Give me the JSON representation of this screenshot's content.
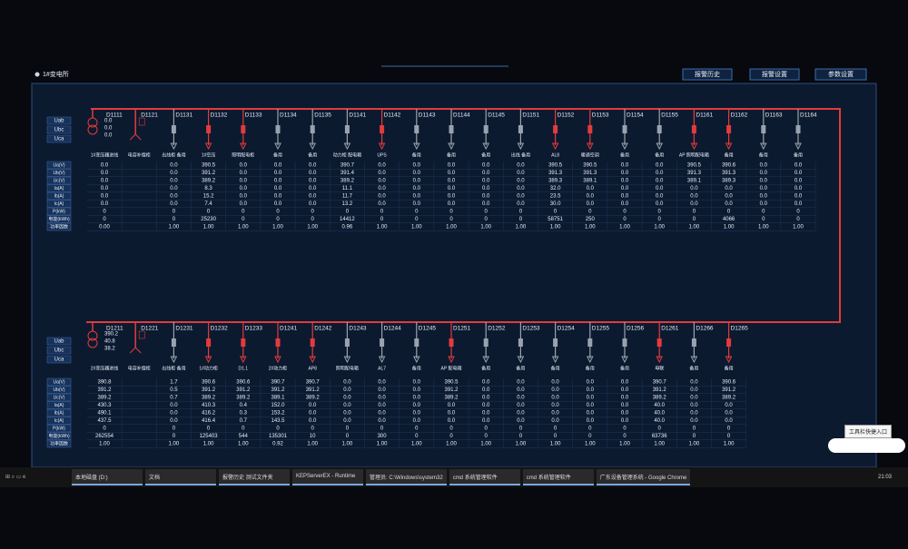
{
  "header": {
    "title": "1#变电所",
    "buttons": [
      "报警历史",
      "报警设置",
      "参数设置"
    ]
  },
  "row_labels": [
    "Ua(V)",
    "Ub(V)",
    "Uc(V)",
    "Ia(A)",
    "Ib(A)",
    "Ic(A)",
    "P(kW)",
    "电能(kWh)",
    "功率因数"
  ],
  "phase_labels": [
    "Uab",
    "Ubc",
    "Uca"
  ],
  "sections": [
    {
      "feeders": [
        {
          "id": "D1111",
          "kind": "transformer",
          "status": "on",
          "label": "1#变压器进线",
          "meter": [
            "0.0",
            "0.0",
            "0.0"
          ],
          "values": [
            "0.0",
            "0.0",
            "0.0",
            "0.0",
            "0.0",
            "0.0",
            "0",
            "0",
            "0.00"
          ]
        },
        {
          "id": "D1121",
          "kind": "capacitor",
          "status": "on",
          "label": "电容补偿柜"
        },
        {
          "id": "D1131",
          "kind": "feeder",
          "status": "off",
          "label": "出线柜 备用",
          "values": [
            "0.0",
            "0.0",
            "0.0",
            "0.0",
            "0.0",
            "0.0",
            "0",
            "0",
            "1.00"
          ]
        },
        {
          "id": "D1132",
          "kind": "feeder",
          "status": "on",
          "label": "1#空压",
          "values": [
            "390.5",
            "391.2",
            "389.2",
            "8.3",
            "15.2",
            "7.4",
            "0",
            "25230",
            "1.00"
          ]
        },
        {
          "id": "D1133",
          "kind": "feeder",
          "status": "on",
          "label": "照明配电柜",
          "values": [
            "0.0",
            "0.0",
            "0.0",
            "0.0",
            "0.0",
            "0.0",
            "0",
            "0",
            "1.00"
          ]
        },
        {
          "id": "D1134",
          "kind": "feeder",
          "status": "off",
          "label": "备用",
          "values": [
            "0.0",
            "0.0",
            "0.0",
            "0.0",
            "0.0",
            "0.0",
            "0",
            "0",
            "1.00"
          ]
        },
        {
          "id": "D1135",
          "kind": "feeder",
          "status": "off",
          "label": "备用",
          "values": [
            "0.0",
            "0.0",
            "0.0",
            "0.0",
            "0.0",
            "0.0",
            "0",
            "0",
            "1.00"
          ]
        },
        {
          "id": "D1141",
          "kind": "feeder",
          "status": "off",
          "label": "动力柜 配电箱",
          "values": [
            "390.7",
            "391.4",
            "389.2",
            "11.1",
            "11.7",
            "13.2",
            "0",
            "14412",
            "0.96"
          ]
        },
        {
          "id": "D1142",
          "kind": "feeder",
          "status": "on",
          "label": "UPS",
          "values": [
            "0.0",
            "0.0",
            "0.0",
            "0.0",
            "0.0",
            "0.0",
            "0",
            "0",
            "1.00"
          ]
        },
        {
          "id": "D1143",
          "kind": "feeder",
          "status": "off",
          "label": "备用",
          "values": [
            "0.0",
            "0.0",
            "0.0",
            "0.0",
            "0.0",
            "0.0",
            "0",
            "0",
            "1.00"
          ]
        },
        {
          "id": "D1144",
          "kind": "feeder",
          "status": "off",
          "label": "备用",
          "values": [
            "0.0",
            "0.0",
            "0.0",
            "0.0",
            "0.0",
            "0.0",
            "0",
            "0",
            "1.00"
          ]
        },
        {
          "id": "D1145",
          "kind": "feeder",
          "status": "off",
          "label": "备用",
          "values": [
            "0.0",
            "0.0",
            "0.0",
            "0.0",
            "0.0",
            "0.0",
            "0",
            "0",
            "1.00"
          ]
        },
        {
          "id": "D1151",
          "kind": "feeder",
          "status": "off",
          "label": "出线 备用",
          "values": [
            "0.0",
            "0.0",
            "0.0",
            "0.0",
            "0.0",
            "0.0",
            "0",
            "0",
            "1.00"
          ]
        },
        {
          "id": "D1152",
          "kind": "feeder",
          "status": "on",
          "label": "AL8",
          "values": [
            "390.5",
            "391.3",
            "389.3",
            "32.0",
            "23.5",
            "30.0",
            "0",
            "58751",
            "1.00"
          ]
        },
        {
          "id": "D1153",
          "kind": "feeder",
          "status": "on",
          "label": "暖通空调",
          "values": [
            "390.5",
            "391.3",
            "389.1",
            "0.0",
            "0.0",
            "0.0",
            "0",
            "250",
            "1.00"
          ]
        },
        {
          "id": "D1154",
          "kind": "feeder",
          "status": "off",
          "label": "备用",
          "values": [
            "0.0",
            "0.0",
            "0.0",
            "0.0",
            "0.0",
            "0.0",
            "0",
            "0",
            "1.00"
          ]
        },
        {
          "id": "D1155",
          "kind": "feeder",
          "status": "off",
          "label": "备用",
          "values": [
            "0.0",
            "0.0",
            "0.0",
            "0.0",
            "0.0",
            "0.0",
            "0",
            "0",
            "1.00"
          ]
        },
        {
          "id": "D1161",
          "kind": "feeder",
          "status": "on",
          "label": "AP 照明配电箱",
          "values": [
            "390.5",
            "391.3",
            "389.1",
            "0.0",
            "0.0",
            "0.0",
            "0",
            "0",
            "1.00"
          ]
        },
        {
          "id": "D1162",
          "kind": "feeder",
          "status": "on",
          "label": "备用",
          "values": [
            "390.6",
            "391.3",
            "389.3",
            "0.0",
            "0.0",
            "0.0",
            "0",
            "4066",
            "1.00"
          ]
        },
        {
          "id": "D1163",
          "kind": "feeder",
          "status": "off",
          "label": "备用",
          "values": [
            "0.0",
            "0.0",
            "0.0",
            "0.0",
            "0.0",
            "0.0",
            "0",
            "0",
            "1.00"
          ]
        },
        {
          "id": "D1164",
          "kind": "feeder",
          "status": "off",
          "label": "备用",
          "values": [
            "0.0",
            "0.0",
            "0.0",
            "0.0",
            "0.0",
            "0.0",
            "0",
            "0",
            "1.00"
          ]
        }
      ]
    },
    {
      "feeders": [
        {
          "id": "D1211",
          "kind": "transformer",
          "status": "on",
          "label": "2#变压器进线",
          "meter": [
            "390.2",
            "40.8",
            "38.2"
          ],
          "values": [
            "390.8",
            "391.2",
            "389.2",
            "430.3",
            "490.1",
            "437.5",
            "0",
            "262554",
            "1.00"
          ]
        },
        {
          "id": "D1221",
          "kind": "capacitor",
          "status": "on",
          "label": "电容补偿柜"
        },
        {
          "id": "D1231",
          "kind": "feeder",
          "status": "off",
          "label": "出线柜 备用",
          "values": [
            "1.7",
            "0.5",
            "0.7",
            "0.0",
            "0.0",
            "0.0",
            "0",
            "0",
            "1.00"
          ]
        },
        {
          "id": "D1232",
          "kind": "feeder",
          "status": "on",
          "label": "1#动力柜",
          "values": [
            "390.6",
            "391.2",
            "389.2",
            "410.3",
            "416.2",
            "416.4",
            "0",
            "125403",
            "1.00"
          ]
        },
        {
          "id": "D1233",
          "kind": "feeder",
          "status": "on",
          "label": "D1.1",
          "values": [
            "390.6",
            "391.2",
            "389.2",
            "0.4",
            "0.3",
            "0.7",
            "0",
            "544",
            "1.00"
          ]
        },
        {
          "id": "D1241",
          "kind": "feeder",
          "status": "on",
          "label": "2#动力柜",
          "values": [
            "390.7",
            "391.2",
            "389.1",
            "152.0",
            "153.2",
            "143.5",
            "0",
            "135301",
            "0.92"
          ]
        },
        {
          "id": "D1242",
          "kind": "feeder",
          "status": "on",
          "label": "AP8",
          "values": [
            "390.7",
            "391.2",
            "389.2",
            "0.0",
            "0.0",
            "0.0",
            "0",
            "10",
            "1.00"
          ]
        },
        {
          "id": "D1243",
          "kind": "feeder",
          "status": "off",
          "label": "照明配电箱",
          "values": [
            "0.0",
            "0.0",
            "0.0",
            "0.0",
            "0.0",
            "0.0",
            "0",
            "0",
            "1.00"
          ]
        },
        {
          "id": "D1244",
          "kind": "feeder",
          "status": "off",
          "label": "AL7",
          "values": [
            "0.0",
            "0.0",
            "0.0",
            "0.0",
            "0.0",
            "0.0",
            "0",
            "300",
            "1.00"
          ]
        },
        {
          "id": "D1245",
          "kind": "feeder",
          "status": "off",
          "label": "备用",
          "values": [
            "0.0",
            "0.0",
            "0.0",
            "0.0",
            "0.0",
            "0.0",
            "0",
            "0",
            "1.00"
          ]
        },
        {
          "id": "D1251",
          "kind": "feeder",
          "status": "on",
          "label": "AP 配电箱",
          "values": [
            "390.5",
            "391.2",
            "389.2",
            "0.0",
            "0.0",
            "0.0",
            "0",
            "0",
            "1.00"
          ]
        },
        {
          "id": "D1252",
          "kind": "feeder",
          "status": "off",
          "label": "备用",
          "values": [
            "0.0",
            "0.0",
            "0.0",
            "0.0",
            "0.0",
            "0.0",
            "0",
            "0",
            "1.00"
          ]
        },
        {
          "id": "D1253",
          "kind": "feeder",
          "status": "off",
          "label": "备用",
          "values": [
            "0.0",
            "0.0",
            "0.0",
            "0.0",
            "0.0",
            "0.0",
            "0",
            "0",
            "1.00"
          ]
        },
        {
          "id": "D1254",
          "kind": "feeder",
          "status": "off",
          "label": "备用",
          "values": [
            "0.0",
            "0.0",
            "0.0",
            "0.0",
            "0.0",
            "0.0",
            "0",
            "0",
            "1.00"
          ]
        },
        {
          "id": "D1255",
          "kind": "feeder",
          "status": "off",
          "label": "备用",
          "values": [
            "0.0",
            "0.0",
            "0.0",
            "0.0",
            "0.0",
            "0.0",
            "0",
            "0",
            "1.00"
          ]
        },
        {
          "id": "D1256",
          "kind": "feeder",
          "status": "off",
          "label": "备用",
          "values": [
            "0.0",
            "0.0",
            "0.0",
            "0.0",
            "0.0",
            "0.0",
            "0",
            "0",
            "1.00"
          ]
        },
        {
          "id": "D1261",
          "kind": "tie",
          "status": "on",
          "label": "母联",
          "values": [
            "390.7",
            "391.2",
            "389.2",
            "40.0",
            "40.0",
            "40.0",
            "0",
            "63736",
            "1.00"
          ]
        },
        {
          "id": "D1266",
          "kind": "feeder",
          "status": "off",
          "label": "备用",
          "values": [
            "0.0",
            "0.0",
            "0.0",
            "0.0",
            "0.0",
            "0.0",
            "0",
            "0",
            "1.00"
          ]
        },
        {
          "id": "D1265",
          "kind": "feeder",
          "status": "on",
          "label": "备用",
          "values": [
            "390.6",
            "391.2",
            "389.2",
            "0.0",
            "0.0",
            "0.0",
            "0",
            "0",
            "1.00"
          ]
        }
      ]
    }
  ],
  "taskbar": {
    "items": [
      "本地磁盘 (D:)",
      "文档",
      "报警历史 测试文件夹",
      "KEPServerEX - Runtime",
      "管理员: C:\\Windows\\system32",
      "cmd 系统管理软件",
      "cmd 系统管理软件",
      "广东设备管理系统 - Google Chrome"
    ],
    "time": "21:03",
    "tooltip": "工具栏快捷入口"
  }
}
